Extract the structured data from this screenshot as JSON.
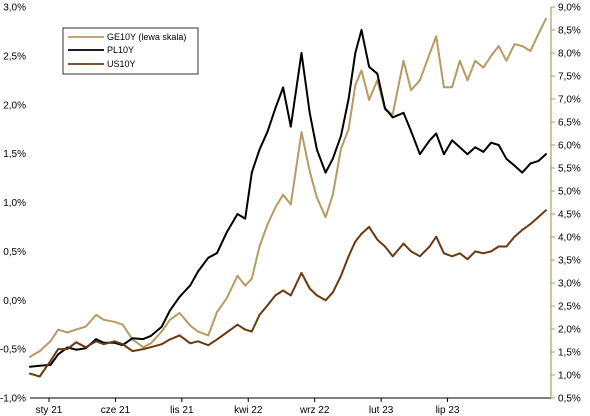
{
  "chart_data": {
    "type": "line",
    "title": "",
    "xlabel": "",
    "ylabel_left": "",
    "ylabel_right": "",
    "x_tick_labels": [
      "sty 21",
      "cze 21",
      "lis 21",
      "kwi 22",
      "wrz 22",
      "lut 23",
      "lip 23"
    ],
    "x_range": [
      "2021-01-01",
      "2023-10-15"
    ],
    "y_left_ticks": [
      "-1,0%",
      "-0,5%",
      "0,0%",
      "0,5%",
      "1,0%",
      "1,5%",
      "2,0%",
      "2,5%",
      "3,0%"
    ],
    "y_left_range": [
      -1.0,
      3.0
    ],
    "y_right_ticks": [
      "0,5%",
      "1,0%",
      "1,5%",
      "2,0%",
      "2,5%",
      "3,0%",
      "3,5%",
      "4,0%",
      "4,5%",
      "5,0%",
      "5,5%",
      "6,0%",
      "6,5%",
      "7,0%",
      "7,5%",
      "8,0%",
      "8,5%",
      "9,0%"
    ],
    "y_right_range": [
      0.5,
      9.0
    ],
    "grid": false,
    "legend_position": "top-left",
    "legend": [
      {
        "label": "GE10Y  (lewa skala)",
        "color": "#b89a64"
      },
      {
        "label": "PL10Y",
        "color": "#000000"
      },
      {
        "label": "US10Y",
        "color": "#6b3a10"
      }
    ],
    "series": [
      {
        "name": "GE10Y  (lewa skala)",
        "axis": "left",
        "color": "#b89a64",
        "points": [
          [
            "2021-01-01",
            -0.58
          ],
          [
            "2021-01-20",
            -0.52
          ],
          [
            "2021-02-10",
            -0.42
          ],
          [
            "2021-02-25",
            -0.3
          ],
          [
            "2021-03-15",
            -0.33
          ],
          [
            "2021-04-01",
            -0.3
          ],
          [
            "2021-04-20",
            -0.27
          ],
          [
            "2021-05-10",
            -0.15
          ],
          [
            "2021-05-25",
            -0.2
          ],
          [
            "2021-06-15",
            -0.22
          ],
          [
            "2021-07-01",
            -0.25
          ],
          [
            "2021-07-20",
            -0.4
          ],
          [
            "2021-08-10",
            -0.48
          ],
          [
            "2021-08-25",
            -0.44
          ],
          [
            "2021-09-15",
            -0.32
          ],
          [
            "2021-10-01",
            -0.2
          ],
          [
            "2021-10-20",
            -0.13
          ],
          [
            "2021-11-10",
            -0.26
          ],
          [
            "2021-11-25",
            -0.32
          ],
          [
            "2021-12-15",
            -0.36
          ],
          [
            "2022-01-01",
            -0.12
          ],
          [
            "2022-01-20",
            0.02
          ],
          [
            "2022-02-10",
            0.25
          ],
          [
            "2022-02-25",
            0.15
          ],
          [
            "2022-03-10",
            0.22
          ],
          [
            "2022-03-25",
            0.55
          ],
          [
            "2022-04-10",
            0.78
          ],
          [
            "2022-04-25",
            0.95
          ],
          [
            "2022-05-10",
            1.08
          ],
          [
            "2022-05-25",
            0.98
          ],
          [
            "2022-06-15",
            1.72
          ],
          [
            "2022-07-01",
            1.32
          ],
          [
            "2022-07-15",
            1.05
          ],
          [
            "2022-08-01",
            0.85
          ],
          [
            "2022-08-15",
            1.08
          ],
          [
            "2022-08-31",
            1.55
          ],
          [
            "2022-09-15",
            1.75
          ],
          [
            "2022-09-28",
            2.2
          ],
          [
            "2022-10-10",
            2.35
          ],
          [
            "2022-10-25",
            2.05
          ],
          [
            "2022-11-10",
            2.25
          ],
          [
            "2022-11-25",
            1.95
          ],
          [
            "2022-12-10",
            1.9
          ],
          [
            "2022-12-31",
            2.45
          ],
          [
            "2023-01-15",
            2.15
          ],
          [
            "2023-02-01",
            2.25
          ],
          [
            "2023-02-20",
            2.52
          ],
          [
            "2023-03-05",
            2.7
          ],
          [
            "2023-03-20",
            2.18
          ],
          [
            "2023-04-05",
            2.18
          ],
          [
            "2023-04-20",
            2.45
          ],
          [
            "2023-05-05",
            2.25
          ],
          [
            "2023-05-20",
            2.45
          ],
          [
            "2023-06-05",
            2.38
          ],
          [
            "2023-06-20",
            2.5
          ],
          [
            "2023-07-05",
            2.6
          ],
          [
            "2023-07-20",
            2.45
          ],
          [
            "2023-08-05",
            2.62
          ],
          [
            "2023-08-20",
            2.6
          ],
          [
            "2023-09-05",
            2.55
          ],
          [
            "2023-09-20",
            2.72
          ],
          [
            "2023-10-05",
            2.88
          ]
        ]
      },
      {
        "name": "PL10Y",
        "axis": "right",
        "color": "#000000",
        "points": [
          [
            "2021-01-01",
            1.18
          ],
          [
            "2021-01-20",
            1.2
          ],
          [
            "2021-02-10",
            1.22
          ],
          [
            "2021-02-25",
            1.45
          ],
          [
            "2021-03-15",
            1.6
          ],
          [
            "2021-04-01",
            1.55
          ],
          [
            "2021-04-20",
            1.58
          ],
          [
            "2021-05-10",
            1.78
          ],
          [
            "2021-05-25",
            1.7
          ],
          [
            "2021-06-15",
            1.7
          ],
          [
            "2021-07-01",
            1.65
          ],
          [
            "2021-07-20",
            1.8
          ],
          [
            "2021-08-10",
            1.78
          ],
          [
            "2021-08-25",
            1.85
          ],
          [
            "2021-09-15",
            2.05
          ],
          [
            "2021-10-01",
            2.4
          ],
          [
            "2021-10-20",
            2.7
          ],
          [
            "2021-11-10",
            2.95
          ],
          [
            "2021-11-25",
            3.25
          ],
          [
            "2021-12-15",
            3.55
          ],
          [
            "2022-01-01",
            3.65
          ],
          [
            "2022-01-20",
            4.1
          ],
          [
            "2022-02-10",
            4.5
          ],
          [
            "2022-02-25",
            4.4
          ],
          [
            "2022-03-10",
            5.4
          ],
          [
            "2022-03-25",
            5.9
          ],
          [
            "2022-04-10",
            6.3
          ],
          [
            "2022-04-25",
            6.8
          ],
          [
            "2022-05-10",
            7.25
          ],
          [
            "2022-05-25",
            6.4
          ],
          [
            "2022-06-15",
            8.0
          ],
          [
            "2022-07-01",
            6.7
          ],
          [
            "2022-07-15",
            5.9
          ],
          [
            "2022-08-01",
            5.4
          ],
          [
            "2022-08-15",
            5.7
          ],
          [
            "2022-08-31",
            6.2
          ],
          [
            "2022-09-15",
            7.0
          ],
          [
            "2022-09-28",
            8.0
          ],
          [
            "2022-10-10",
            8.5
          ],
          [
            "2022-10-25",
            7.7
          ],
          [
            "2022-11-10",
            7.55
          ],
          [
            "2022-11-25",
            6.8
          ],
          [
            "2022-12-10",
            6.6
          ],
          [
            "2022-12-31",
            6.7
          ],
          [
            "2023-01-15",
            6.3
          ],
          [
            "2023-02-01",
            5.8
          ],
          [
            "2023-02-20",
            6.1
          ],
          [
            "2023-03-05",
            6.25
          ],
          [
            "2023-03-20",
            5.8
          ],
          [
            "2023-04-05",
            6.1
          ],
          [
            "2023-04-20",
            5.95
          ],
          [
            "2023-05-05",
            5.8
          ],
          [
            "2023-05-20",
            5.95
          ],
          [
            "2023-06-05",
            5.85
          ],
          [
            "2023-06-20",
            6.05
          ],
          [
            "2023-07-05",
            6.0
          ],
          [
            "2023-07-20",
            5.7
          ],
          [
            "2023-08-05",
            5.55
          ],
          [
            "2023-08-20",
            5.4
          ],
          [
            "2023-09-05",
            5.6
          ],
          [
            "2023-09-20",
            5.65
          ],
          [
            "2023-10-05",
            5.8
          ]
        ]
      },
      {
        "name": "US10Y",
        "axis": "left",
        "color": "#6b3a10",
        "points": [
          [
            "2021-01-01",
            -0.75
          ],
          [
            "2021-01-20",
            -0.78
          ],
          [
            "2021-02-10",
            -0.62
          ],
          [
            "2021-02-25",
            -0.5
          ],
          [
            "2021-03-15",
            -0.5
          ],
          [
            "2021-04-01",
            -0.43
          ],
          [
            "2021-04-20",
            -0.48
          ],
          [
            "2021-05-10",
            -0.42
          ],
          [
            "2021-05-25",
            -0.45
          ],
          [
            "2021-06-15",
            -0.42
          ],
          [
            "2021-07-01",
            -0.45
          ],
          [
            "2021-07-20",
            -0.52
          ],
          [
            "2021-08-10",
            -0.5
          ],
          [
            "2021-08-25",
            -0.48
          ],
          [
            "2021-09-15",
            -0.45
          ],
          [
            "2021-10-01",
            -0.4
          ],
          [
            "2021-10-20",
            -0.36
          ],
          [
            "2021-11-10",
            -0.44
          ],
          [
            "2021-11-25",
            -0.42
          ],
          [
            "2021-12-15",
            -0.46
          ],
          [
            "2022-01-01",
            -0.4
          ],
          [
            "2022-01-20",
            -0.33
          ],
          [
            "2022-02-10",
            -0.25
          ],
          [
            "2022-02-25",
            -0.3
          ],
          [
            "2022-03-10",
            -0.32
          ],
          [
            "2022-03-25",
            -0.15
          ],
          [
            "2022-04-10",
            -0.05
          ],
          [
            "2022-04-25",
            0.05
          ],
          [
            "2022-05-10",
            0.1
          ],
          [
            "2022-05-25",
            0.05
          ],
          [
            "2022-06-15",
            0.28
          ],
          [
            "2022-07-01",
            0.12
          ],
          [
            "2022-07-15",
            0.05
          ],
          [
            "2022-08-01",
            0.0
          ],
          [
            "2022-08-15",
            0.08
          ],
          [
            "2022-08-31",
            0.25
          ],
          [
            "2022-09-15",
            0.45
          ],
          [
            "2022-09-28",
            0.6
          ],
          [
            "2022-10-10",
            0.68
          ],
          [
            "2022-10-25",
            0.75
          ],
          [
            "2022-11-10",
            0.62
          ],
          [
            "2022-11-25",
            0.55
          ],
          [
            "2022-12-10",
            0.45
          ],
          [
            "2022-12-31",
            0.58
          ],
          [
            "2023-01-15",
            0.5
          ],
          [
            "2023-02-01",
            0.45
          ],
          [
            "2023-02-20",
            0.55
          ],
          [
            "2023-03-05",
            0.65
          ],
          [
            "2023-03-20",
            0.48
          ],
          [
            "2023-04-05",
            0.45
          ],
          [
            "2023-04-20",
            0.48
          ],
          [
            "2023-05-05",
            0.42
          ],
          [
            "2023-05-20",
            0.5
          ],
          [
            "2023-06-05",
            0.48
          ],
          [
            "2023-06-20",
            0.5
          ],
          [
            "2023-07-05",
            0.55
          ],
          [
            "2023-07-20",
            0.55
          ],
          [
            "2023-08-05",
            0.65
          ],
          [
            "2023-08-20",
            0.72
          ],
          [
            "2023-09-05",
            0.78
          ],
          [
            "2023-09-20",
            0.85
          ],
          [
            "2023-10-05",
            0.92
          ]
        ]
      }
    ]
  }
}
